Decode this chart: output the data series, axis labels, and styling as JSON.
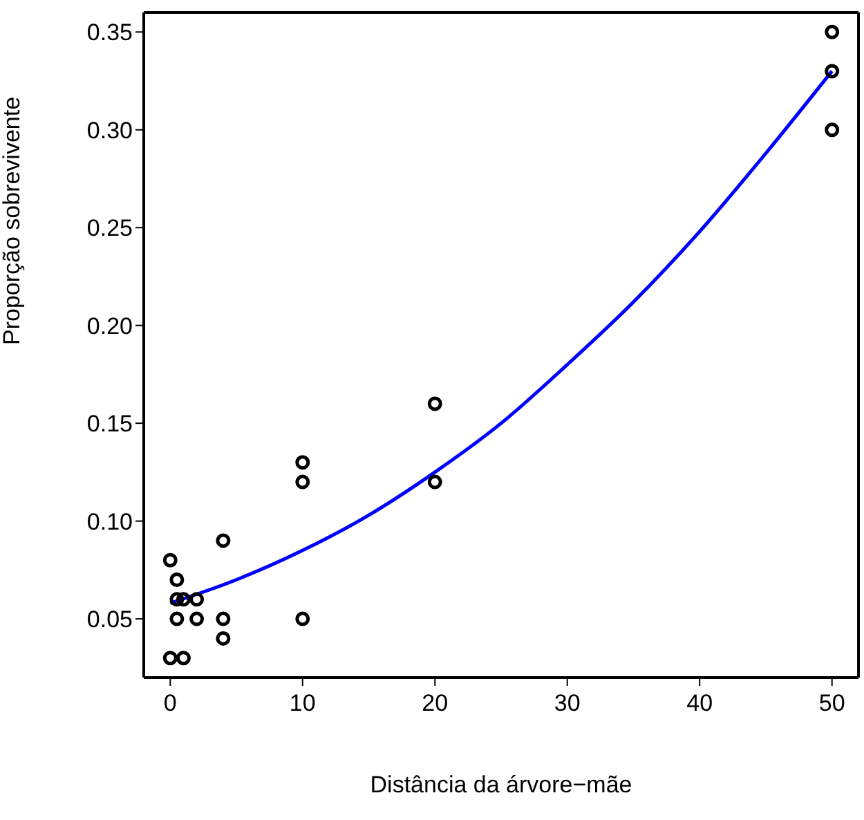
{
  "chart_data": {
    "type": "scatter",
    "xlabel": "Distância da árvore−mãe",
    "ylabel": "Proporção sobrevivente",
    "xlim": [
      -2,
      52
    ],
    "ylim": [
      0.02,
      0.36
    ],
    "xticks": [
      0,
      10,
      20,
      30,
      40,
      50
    ],
    "yticks": [
      0.05,
      {
        "value": 0.1,
        "label": "0.10"
      },
      0.15,
      {
        "value": 0.2,
        "label": "0.20"
      },
      0.25,
      {
        "value": 0.3,
        "label": "0.30"
      },
      0.35
    ],
    "marker": "circle",
    "series": [
      {
        "type": "scatter",
        "color": "#000000",
        "x": [
          0,
          0,
          0.5,
          0.5,
          0.5,
          1,
          1,
          2,
          2,
          4,
          4,
          4,
          10,
          10,
          10,
          20,
          20,
          50,
          50,
          50
        ],
        "values": [
          0.08,
          0.03,
          0.07,
          0.06,
          0.05,
          0.06,
          0.03,
          0.06,
          0.05,
          0.09,
          0.05,
          0.04,
          0.13,
          0.12,
          0.05,
          0.16,
          0.12,
          0.35,
          0.33,
          0.3
        ]
      },
      {
        "type": "line",
        "color": "#0000ff",
        "marker": "none",
        "x": [
          0,
          5,
          10,
          15,
          20,
          25,
          30,
          35,
          40,
          45,
          50
        ],
        "values": [
          0.058,
          0.07,
          0.085,
          0.103,
          0.125,
          0.15,
          0.18,
          0.212,
          0.248,
          0.288,
          0.33
        ]
      }
    ]
  }
}
